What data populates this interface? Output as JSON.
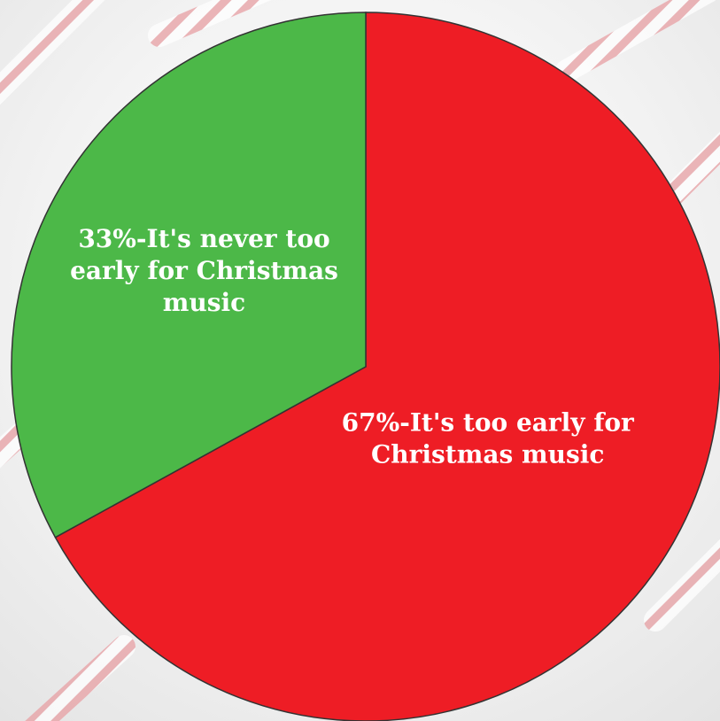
{
  "chart_data": {
    "type": "pie",
    "slices": [
      {
        "label": "It's too early for Christmas music",
        "value": 67,
        "display_lines": [
          "67%-It's too early for",
          "Christmas music"
        ],
        "color": "#ee1d25"
      },
      {
        "label": "It's never too early for Christmas music",
        "value": 33,
        "display_lines": [
          "33%-It's never too",
          "early for Christmas",
          "music"
        ],
        "color": "#4cb848"
      }
    ],
    "title": "",
    "legend": "none",
    "outline_color": "#333333"
  },
  "background": {
    "theme": "candy-cane",
    "stripe_color": "#e8a0a4"
  }
}
